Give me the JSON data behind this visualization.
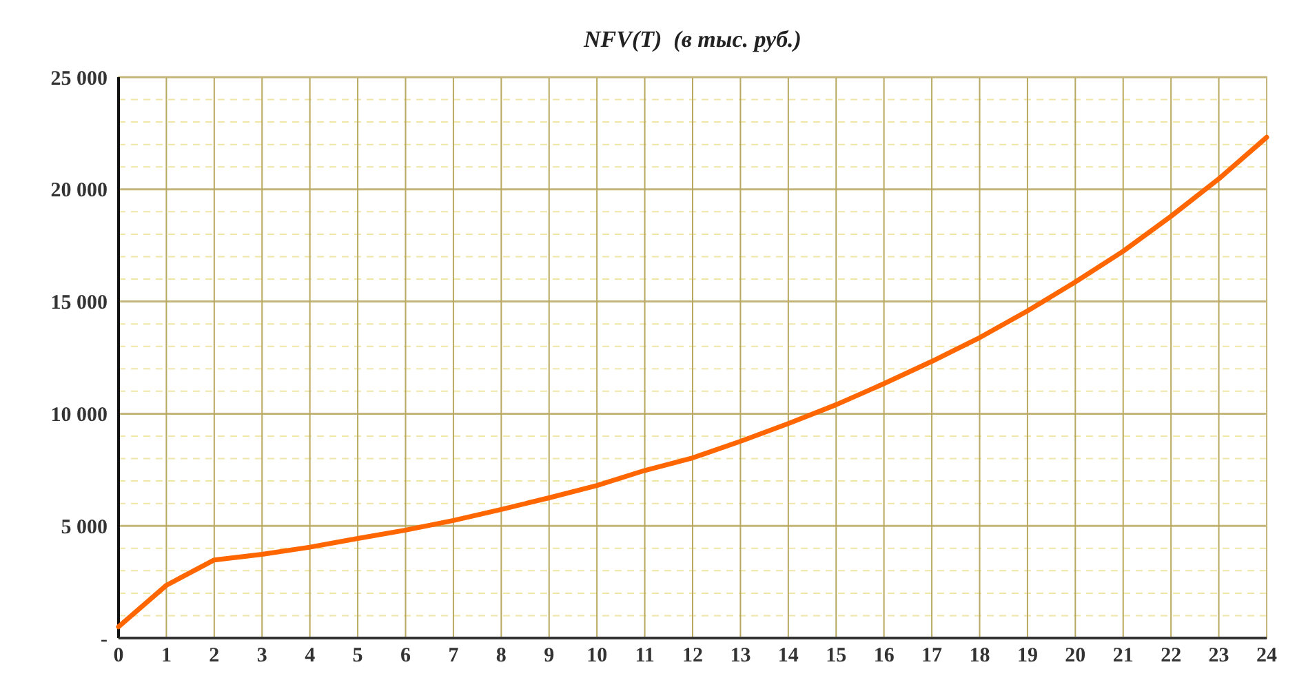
{
  "chart_data": {
    "type": "line",
    "title": "NFV(T)  (в тыс. руб.)",
    "x": [
      0,
      1,
      2,
      3,
      4,
      5,
      6,
      7,
      8,
      9,
      10,
      11,
      12,
      13,
      14,
      15,
      16,
      17,
      18,
      19,
      20,
      21,
      22,
      23,
      24
    ],
    "series": [
      {
        "color": "#ff6600",
        "values": [
          500,
          2350,
          3480,
          3730,
          4050,
          4440,
          4810,
          5240,
          5730,
          6250,
          6800,
          7470,
          8030,
          8770,
          9560,
          10400,
          11340,
          12330,
          13390,
          14580,
          15870,
          17240,
          18800,
          20470,
          22320
        ]
      }
    ],
    "xlim": [
      0,
      24
    ],
    "xticks": [
      0,
      1,
      2,
      3,
      4,
      5,
      6,
      7,
      8,
      9,
      10,
      11,
      12,
      13,
      14,
      15,
      16,
      17,
      18,
      19,
      20,
      21,
      22,
      23,
      24
    ],
    "ylim": [
      0,
      25000
    ],
    "yticks": [
      {
        "value": 0,
        "label": "-"
      },
      {
        "value": 1000,
        "label": null
      },
      {
        "value": 2000,
        "label": null
      },
      {
        "value": 3000,
        "label": null
      },
      {
        "value": 4000,
        "label": null
      },
      {
        "value": 5000,
        "label": "5 000"
      },
      {
        "value": 6000,
        "label": null
      },
      {
        "value": 7000,
        "label": null
      },
      {
        "value": 8000,
        "label": null
      },
      {
        "value": 9000,
        "label": null
      },
      {
        "value": 10000,
        "label": "10 000"
      },
      {
        "value": 11000,
        "label": null
      },
      {
        "value": 12000,
        "label": null
      },
      {
        "value": 13000,
        "label": null
      },
      {
        "value": 14000,
        "label": null
      },
      {
        "value": 15000,
        "label": "15 000"
      },
      {
        "value": 16000,
        "label": null
      },
      {
        "value": 17000,
        "label": null
      },
      {
        "value": 18000,
        "label": null
      },
      {
        "value": 19000,
        "label": null
      },
      {
        "value": 20000,
        "label": "20 000"
      },
      {
        "value": 21000,
        "label": null
      },
      {
        "value": 22000,
        "label": null
      },
      {
        "value": 23000,
        "label": null
      },
      {
        "value": 24000,
        "label": null
      },
      {
        "value": 25000,
        "label": "25 000"
      }
    ],
    "grid": true,
    "marker": "none",
    "line_style": "solid"
  }
}
